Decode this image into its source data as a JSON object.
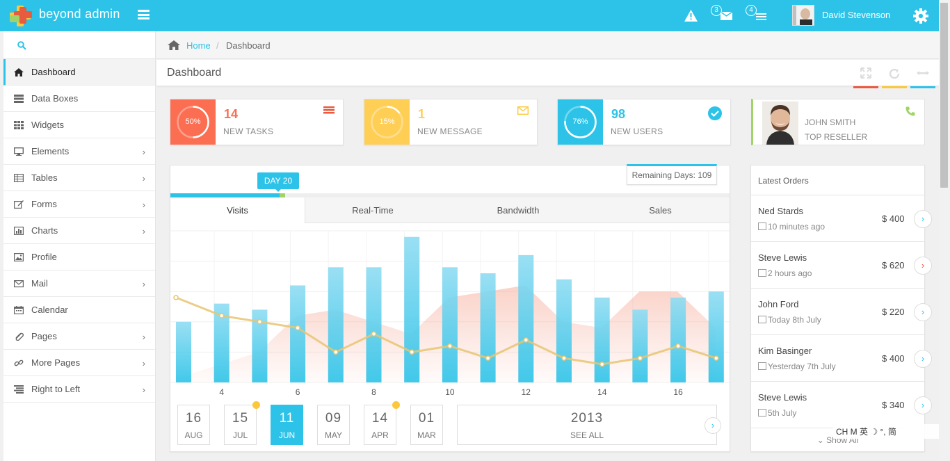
{
  "app": {
    "brand": "beyond admin",
    "user_name": "David Stevenson",
    "messages_count": "3",
    "tasks_count": "4"
  },
  "sidebar": {
    "items": [
      {
        "label": "Dashboard"
      },
      {
        "label": "Data Boxes"
      },
      {
        "label": "Widgets"
      },
      {
        "label": "Elements"
      },
      {
        "label": "Tables"
      },
      {
        "label": "Forms"
      },
      {
        "label": "Charts"
      },
      {
        "label": "Profile"
      },
      {
        "label": "Mail"
      },
      {
        "label": "Calendar"
      },
      {
        "label": "Pages"
      },
      {
        "label": "More Pages"
      },
      {
        "label": "Right to Left"
      }
    ]
  },
  "breadcrumb": {
    "home": "Home",
    "separator": "/",
    "current": "Dashboard"
  },
  "page": {
    "title": "Dashboard"
  },
  "header_colors": {
    "maximize": "#e75b3e",
    "refresh": "#fbc83c",
    "collapse": "#2dc3e8"
  },
  "stats": [
    {
      "value": "14",
      "label": "NEW TASKS",
      "percent": "50%",
      "fraction": 0.5,
      "color": "#fb6e52",
      "icon": "list-icon"
    },
    {
      "value": "1",
      "label": "NEW MESSAGE",
      "percent": "15%",
      "fraction": 0.15,
      "color": "#ffce55",
      "icon": "envelope-icon"
    },
    {
      "value": "98",
      "label": "NEW USERS",
      "percent": "76%",
      "fraction": 0.76,
      "color": "#2dc3e8",
      "icon": "check-circle-icon"
    }
  ],
  "profile": {
    "name": "JOHN SMITH",
    "role": "TOP RESELLER"
  },
  "dashboard_chart": {
    "day_badge": "DAY 20",
    "remaining": "Remaining Days: 109",
    "progress_fraction": 0.2,
    "tabs": [
      "Visits",
      "Real-Time",
      "Bandwidth",
      "Sales"
    ],
    "dates": [
      {
        "day": "16",
        "month": "AUG"
      },
      {
        "day": "15",
        "month": "JUL"
      },
      {
        "day": "11",
        "month": "JUN"
      },
      {
        "day": "09",
        "month": "MAY"
      },
      {
        "day": "14",
        "month": "APR"
      },
      {
        "day": "01",
        "month": "MAR"
      }
    ],
    "year": "2013",
    "see_all": "SEE ALL"
  },
  "chart_data": {
    "type": "bar",
    "x": [
      3,
      4,
      5,
      6,
      7,
      8,
      9,
      10,
      11,
      12,
      13,
      14,
      15,
      16,
      17
    ],
    "tick_labels": [
      "4",
      "6",
      "8",
      "10",
      "12",
      "14",
      "16"
    ],
    "ylim": [
      0,
      25
    ],
    "series": [
      {
        "values": [
          10,
          13,
          12,
          16,
          19,
          19,
          24,
          19,
          18,
          21,
          17,
          14,
          12,
          14,
          15
        ],
        "color": "#2dc3e8"
      },
      {
        "values": [
          14,
          11,
          10,
          9,
          5,
          8,
          5,
          6,
          4,
          7,
          4,
          3,
          4,
          6,
          4
        ],
        "color": "#e7c472"
      },
      {
        "values": [
          1,
          3,
          5,
          11,
          12,
          10,
          8,
          14,
          15,
          16,
          10,
          9,
          15,
          15,
          9
        ],
        "color": "#f7b4a4"
      }
    ]
  },
  "orders": {
    "title": "Latest Orders",
    "items": [
      {
        "name": "Ned Stards",
        "time": "10 minutes ago",
        "amount": "$ 400",
        "arrow_color": "#2dc3e8"
      },
      {
        "name": "Steve Lewis",
        "time": "2 hours ago",
        "amount": "$ 620",
        "arrow_color": "#e75b3e"
      },
      {
        "name": "John Ford",
        "time": "Today 8th July",
        "amount": "$ 220",
        "arrow_color": "#2dc3e8"
      },
      {
        "name": "Kim Basinger",
        "time": "Yesterday 7th July",
        "amount": "$ 400",
        "arrow_color": "#2dc3e8"
      },
      {
        "name": "Steve Lewis",
        "time": "5th July",
        "amount": "$ 340",
        "arrow_color": "#2dc3e8"
      }
    ],
    "show_all": "Show All"
  },
  "ime": {
    "text": "CH M 英 ☽ °, 简"
  }
}
